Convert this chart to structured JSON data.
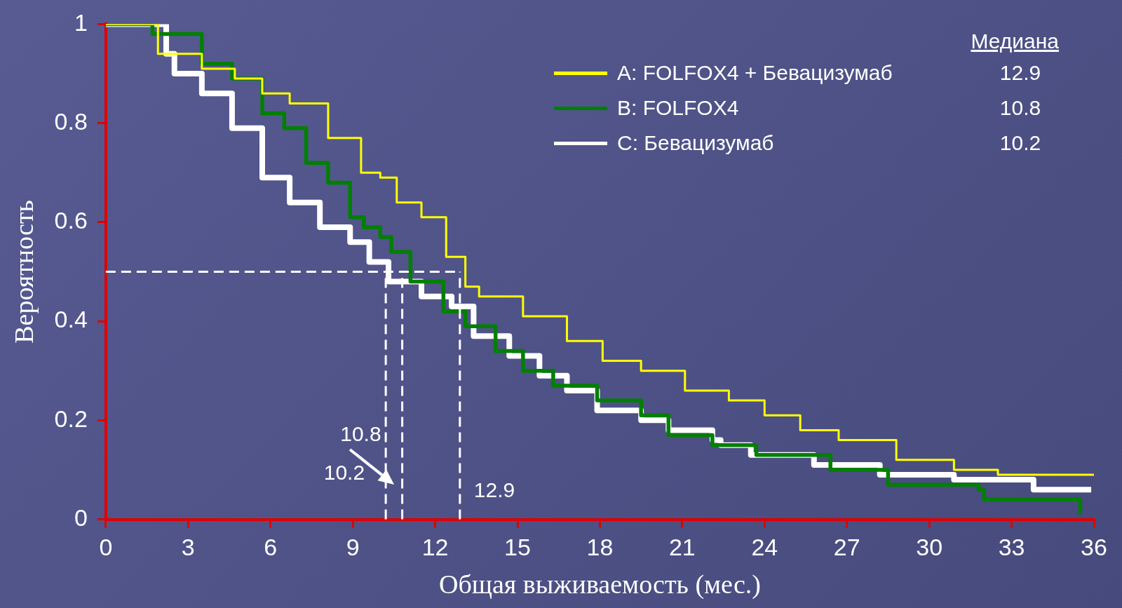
{
  "chart_data": {
    "type": "step",
    "xlabel": "Общая выживаемость (мес.)",
    "ylabel": "Вероятность",
    "xlim": [
      0,
      36
    ],
    "xticks": [
      0,
      3,
      6,
      9,
      12,
      15,
      18,
      21,
      24,
      27,
      30,
      33,
      36
    ],
    "ylim": [
      0,
      1
    ],
    "yticks": [
      0,
      0.2,
      0.4,
      0.6,
      0.8,
      1.0
    ],
    "grid": false,
    "legend": "top right",
    "legend_title": "Медиана",
    "line_style": "solid",
    "marker": "none",
    "series": [
      {
        "name": "A: FOLFOX4 + Бевацизумаб",
        "color": "#ffff00",
        "x": [
          0,
          1.9,
          3.5,
          4.7,
          5.7,
          6.7,
          8.1,
          9.3,
          10.0,
          10.6,
          11.5,
          12.4,
          13.1,
          13.6,
          15.2,
          16.8,
          18.1,
          19.5,
          21.1,
          22.7,
          24.0,
          25.3,
          26.7,
          28.8,
          30.9,
          32.5,
          36.0
        ],
        "values": [
          1.0,
          0.94,
          0.91,
          0.89,
          0.86,
          0.84,
          0.77,
          0.7,
          0.69,
          0.64,
          0.61,
          0.53,
          0.47,
          0.45,
          0.41,
          0.36,
          0.32,
          0.3,
          0.26,
          0.24,
          0.21,
          0.18,
          0.16,
          0.12,
          0.1,
          0.09,
          0.09
        ]
      },
      {
        "name": "B: FOLFOX4",
        "color": "#008000",
        "x": [
          0,
          1.7,
          3.5,
          4.6,
          5.7,
          6.5,
          7.3,
          8.1,
          8.9,
          9.4,
          10.0,
          10.4,
          11.1,
          12.3,
          13.1,
          14.2,
          15.2,
          16.3,
          17.9,
          19.5,
          20.5,
          22.1,
          23.7,
          26.4,
          28.5,
          31.8,
          32.0,
          35.5,
          35.5
        ],
        "values": [
          1.0,
          0.98,
          0.92,
          0.89,
          0.82,
          0.79,
          0.72,
          0.68,
          0.61,
          0.59,
          0.57,
          0.54,
          0.48,
          0.42,
          0.39,
          0.34,
          0.3,
          0.27,
          0.24,
          0.21,
          0.17,
          0.15,
          0.13,
          0.1,
          0.07,
          0.06,
          0.04,
          0.04,
          0.01
        ]
      },
      {
        "name": "C: Бевацизумаб",
        "color": "#ffffff",
        "x": [
          0,
          2.2,
          2.5,
          3.5,
          4.6,
          5.7,
          6.7,
          7.8,
          8.9,
          9.6,
          10.3,
          11.5,
          12.6,
          13.4,
          14.7,
          15.8,
          16.8,
          17.9,
          19.5,
          20.5,
          22.1,
          22.4,
          23.5,
          25.8,
          28.2,
          30.9,
          33.8,
          35.9
        ],
        "values": [
          1.0,
          0.94,
          0.9,
          0.86,
          0.79,
          0.69,
          0.64,
          0.59,
          0.56,
          0.52,
          0.48,
          0.45,
          0.43,
          0.37,
          0.33,
          0.29,
          0.26,
          0.22,
          0.2,
          0.18,
          0.16,
          0.15,
          0.13,
          0.11,
          0.09,
          0.08,
          0.06,
          0.06
        ]
      }
    ],
    "annotations": [
      "12.9",
      "10.8",
      "10.2"
    ],
    "ref_lines": [
      {
        "axis": "y",
        "value": 0.5,
        "color": "#ffffff",
        "line_style": "dashed"
      },
      {
        "axis": "x",
        "value": 10.2,
        "label": "10.2",
        "color": "#ffffff",
        "line_style": "dashed"
      },
      {
        "axis": "x",
        "value": 10.8,
        "label": "10.8",
        "color": "#ffffff",
        "line_style": "dashed"
      },
      {
        "axis": "x",
        "value": 12.9,
        "label": "12.9",
        "color": "#ffffff",
        "line_style": "dashed"
      }
    ]
  }
}
